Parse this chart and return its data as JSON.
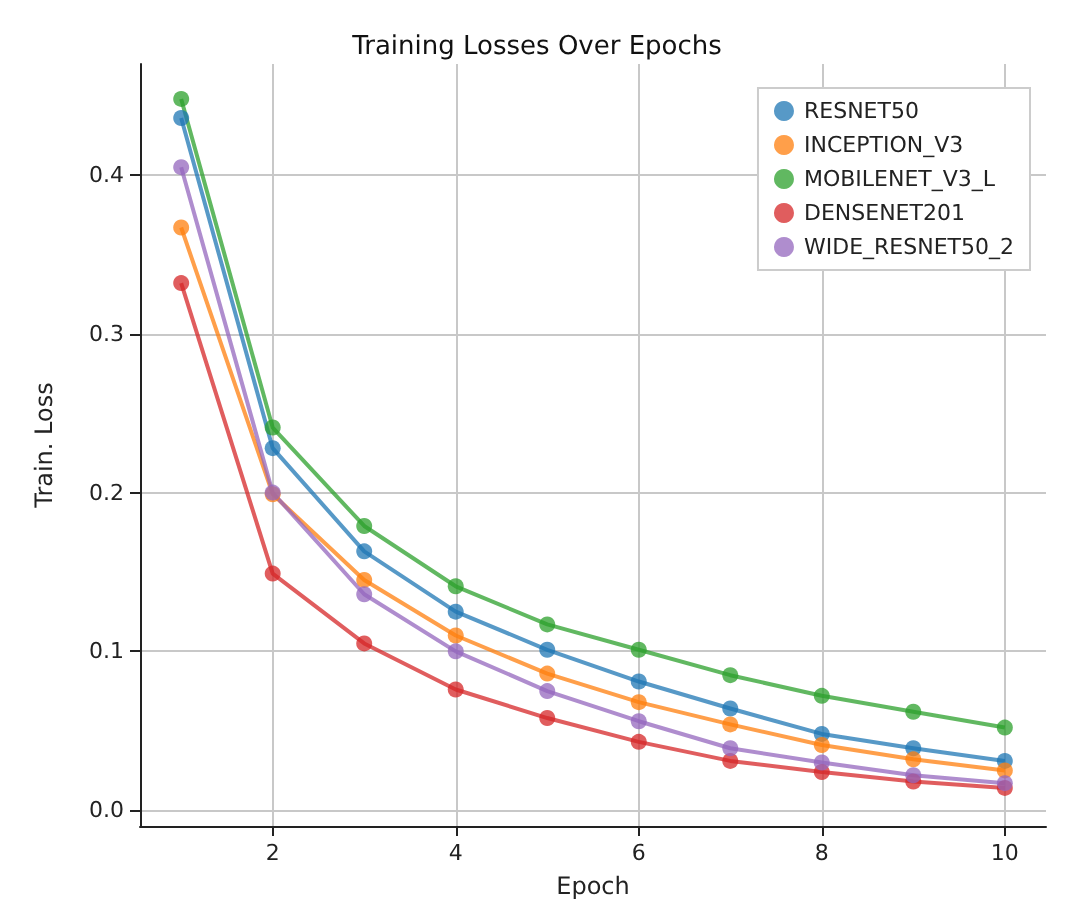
{
  "chart_data": {
    "type": "line",
    "title": "Training Losses Over Epochs",
    "xlabel": "Epoch",
    "ylabel": "Train. Loss",
    "x": [
      1,
      2,
      3,
      4,
      5,
      6,
      7,
      8,
      9,
      10
    ],
    "series": [
      {
        "name": "RESNET50",
        "color": "#1f77b4",
        "values": [
          0.436,
          0.228,
          0.163,
          0.125,
          0.101,
          0.081,
          0.064,
          0.048,
          0.039,
          0.031
        ]
      },
      {
        "name": "INCEPTION_V3",
        "color": "#ff7f0e",
        "values": [
          0.367,
          0.199,
          0.145,
          0.11,
          0.086,
          0.068,
          0.054,
          0.041,
          0.032,
          0.025
        ]
      },
      {
        "name": "MOBILENET_V3_L",
        "color": "#2ca02c",
        "values": [
          0.448,
          0.241,
          0.179,
          0.141,
          0.117,
          0.101,
          0.085,
          0.072,
          0.062,
          0.052
        ]
      },
      {
        "name": "DENSENET201",
        "color": "#d62728",
        "values": [
          0.332,
          0.149,
          0.105,
          0.076,
          0.058,
          0.043,
          0.031,
          0.024,
          0.018,
          0.014
        ]
      },
      {
        "name": "WIDE_RESNET50_2",
        "color": "#9467bd",
        "values": [
          0.405,
          0.2,
          0.136,
          0.1,
          0.075,
          0.056,
          0.039,
          0.03,
          0.022,
          0.017
        ]
      }
    ],
    "xlim": [
      0.55,
      10.45
    ],
    "xticks": [
      2,
      4,
      6,
      8,
      10
    ],
    "ylim": [
      -0.01,
      0.47
    ],
    "yticks": [
      {
        "value": 0,
        "label": "0.0"
      },
      {
        "value": 0.1,
        "label": "0.1"
      },
      {
        "value": 0.2,
        "label": "0.2"
      },
      {
        "value": 0.3,
        "label": "0.3"
      },
      {
        "value": 0.4,
        "label": "0.4"
      }
    ],
    "grid": true,
    "legend": "top right",
    "marker": "circle",
    "line_style": "solid"
  }
}
